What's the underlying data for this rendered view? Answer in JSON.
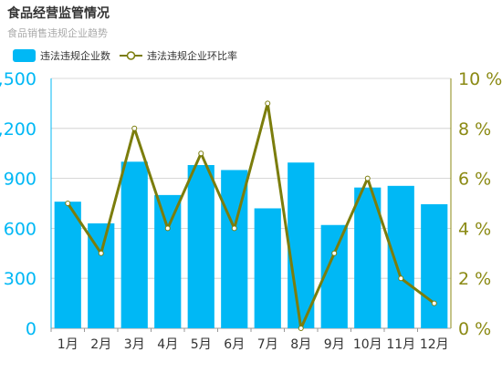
{
  "colors": {
    "bar": "#00b8f5",
    "line": "#7b7d0c",
    "grid": "#cccccc",
    "axis_left": "#00b8f5",
    "axis_right": "#8b8a14"
  },
  "chart_data": {
    "type": "bar",
    "title": "食品经营监管情况",
    "subtitle": "食品销售违规企业趋势",
    "categories": [
      "1月",
      "2月",
      "3月",
      "4月",
      "5月",
      "6月",
      "7月",
      "8月",
      "9月",
      "10月",
      "11月",
      "12月"
    ],
    "series": [
      {
        "name": "违法违规企业数",
        "type": "bar",
        "axis": "left",
        "values": [
          760,
          630,
          1000,
          800,
          980,
          950,
          720,
          995,
          620,
          845,
          855,
          745
        ]
      },
      {
        "name": "违法违规企业环比率",
        "type": "line",
        "axis": "right",
        "values": [
          5,
          3,
          8,
          4,
          7,
          4,
          9,
          0,
          3,
          6,
          2,
          1
        ]
      }
    ],
    "y_left": {
      "min": 0,
      "max": 1500,
      "ticks": [
        0,
        300,
        600,
        900,
        "1,200",
        "1,500"
      ]
    },
    "y_right": {
      "min": 0,
      "max": 10,
      "ticks": [
        "0 %",
        "2 %",
        "4 %",
        "6 %",
        "8 %",
        "10 %"
      ]
    },
    "grid": true,
    "legend": "top-left"
  }
}
